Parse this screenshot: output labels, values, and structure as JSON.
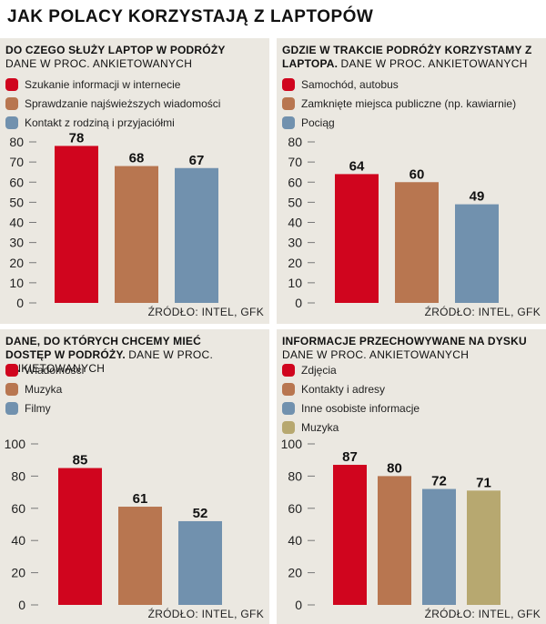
{
  "title": "JAK POLACY KORZYSTAJĄ Z LAPTOPÓW",
  "colors": {
    "red": "#d0051e",
    "brown": "#b87650",
    "blue": "#7191ae",
    "olive": "#b7a870",
    "panel": "#ebe8e1"
  },
  "chart_data": [
    {
      "type": "bar",
      "title_bold": "DO CZEGO SŁUŻY LAPTOP W PODRÓŻY",
      "title_sub": "DANE W PROC. ANKIETOWANYCH",
      "categories": [
        "Szukanie informacji w internecie",
        "Sprawdzanie najświeższych wiadomości",
        "Kontakt z rodziną i przyjaciółmi"
      ],
      "values": [
        78,
        68,
        67
      ],
      "value_labels": [
        "78",
        "68",
        "67"
      ],
      "colors": [
        "#d0051e",
        "#b87650",
        "#7191ae"
      ],
      "yticks": [
        0,
        10,
        20,
        30,
        40,
        50,
        60,
        70,
        80
      ],
      "ytick_labels": [
        "0",
        "10",
        "20",
        "30",
        "40",
        "50",
        "60",
        "70",
        "80"
      ],
      "ylim": [
        0,
        80
      ],
      "source": "ŹRÓDŁO: INTEL, GFK"
    },
    {
      "type": "bar",
      "title_bold": "GDZIE W TRAKCIE PODRÓŻY KORZYSTAMY Z LAPTOPA.",
      "title_sub": "DANE W PROC. ANKIETOWANYCH",
      "categories": [
        "Samochód, autobus",
        "Zamknięte miejsca publiczne (np. kawiarnie)",
        "Pociąg"
      ],
      "values": [
        64,
        60,
        49
      ],
      "value_labels": [
        "64",
        "60",
        "49"
      ],
      "colors": [
        "#d0051e",
        "#b87650",
        "#7191ae"
      ],
      "yticks": [
        0,
        10,
        20,
        30,
        40,
        50,
        60,
        70,
        80
      ],
      "ytick_labels": [
        "0",
        "10",
        "20",
        "30",
        "40",
        "50",
        "60",
        "70",
        "80"
      ],
      "ylim": [
        0,
        80
      ],
      "source": "ŹRÓDŁO: INTEL, GFK"
    },
    {
      "type": "bar",
      "title_bold": "DANE, DO KTÓRYCH CHCEMY MIEĆ DOSTĘP W PODRÓŻY.",
      "title_sub": "DANE W PROC. ANKIETOWANYCH",
      "categories": [
        "Wiadomości",
        "Muzyka",
        "Filmy"
      ],
      "values": [
        85,
        61,
        52
      ],
      "value_labels": [
        "85",
        "61",
        "52"
      ],
      "colors": [
        "#d0051e",
        "#b87650",
        "#7191ae"
      ],
      "yticks": [
        0,
        20,
        40,
        60,
        80,
        100
      ],
      "ytick_labels": [
        "0",
        "20",
        "40",
        "60",
        "80",
        "100"
      ],
      "ylim": [
        0,
        100
      ],
      "source": "ŹRÓDŁO: INTEL, GFK"
    },
    {
      "type": "bar",
      "title_bold": "INFORMACJE PRZECHOWYWANE NA DYSKU",
      "title_sub": "DANE W PROC. ANKIETOWANYCH",
      "categories": [
        "Zdjęcia",
        "Kontakty i adresy",
        "Inne osobiste informacje",
        "Muzyka"
      ],
      "values": [
        87,
        80,
        72,
        71
      ],
      "value_labels": [
        "87",
        "80",
        "72",
        "71"
      ],
      "colors": [
        "#d0051e",
        "#b87650",
        "#7191ae",
        "#b7a870"
      ],
      "yticks": [
        0,
        20,
        40,
        60,
        80,
        100
      ],
      "ytick_labels": [
        "0",
        "20",
        "40",
        "60",
        "80",
        "100"
      ],
      "ylim": [
        0,
        100
      ],
      "source": "ŹRÓDŁO: INTEL, GFK"
    }
  ]
}
